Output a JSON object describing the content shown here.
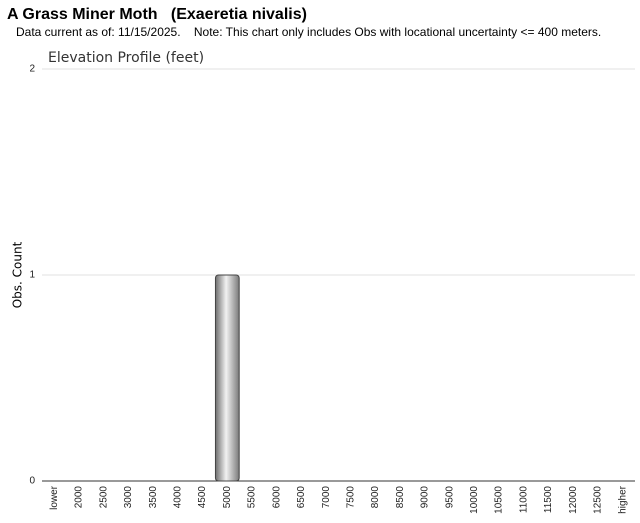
{
  "header": {
    "title": "A Grass Miner Moth   (Exaeretia nivalis)",
    "subtitle": "Data current as of: 11/15/2025.    Note: This chart only includes Obs with locational uncertainty <= 400 meters."
  },
  "chart_data": {
    "type": "bar",
    "title": "Elevation Profile (feet)",
    "y_label": "Obs. Count",
    "categories": [
      "lower",
      "2000",
      "2500",
      "3000",
      "3500",
      "4000",
      "4500",
      "5000",
      "5500",
      "6000",
      "6500",
      "7000",
      "7500",
      "8000",
      "8500",
      "9000",
      "9500",
      "10000",
      "10500",
      "11000",
      "11500",
      "12000",
      "12500",
      "higher"
    ],
    "values": [
      0,
      0,
      0,
      0,
      0,
      0,
      0,
      1,
      0,
      0,
      0,
      0,
      0,
      0,
      0,
      0,
      0,
      0,
      0,
      0,
      0,
      0,
      0,
      0
    ],
    "color": "#a8a8a8",
    "ylim": [
      0,
      2
    ],
    "yticks": [
      0,
      1,
      2
    ],
    "grid": true
  }
}
